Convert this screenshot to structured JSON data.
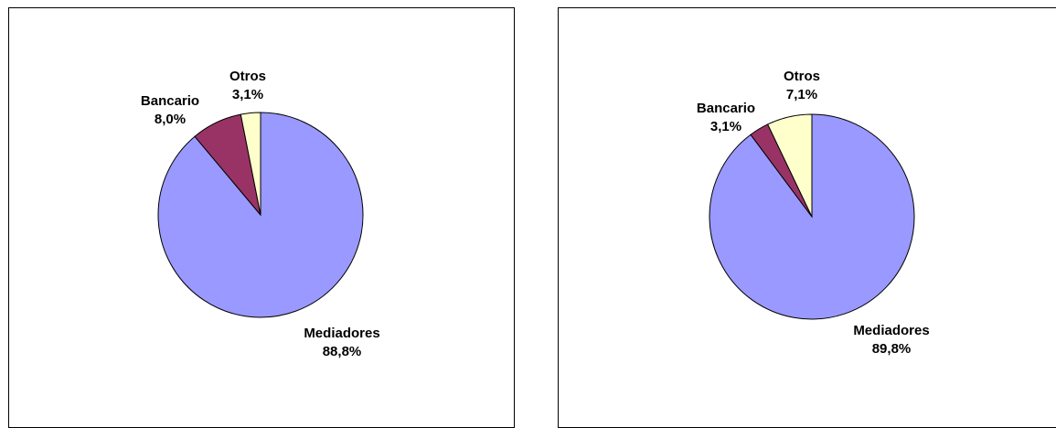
{
  "chart_data": [
    {
      "type": "pie",
      "categories": [
        "Mediadores",
        "Bancario",
        "Otros"
      ],
      "values": [
        88.8,
        8.0,
        3.1
      ],
      "value_labels": [
        "88,8%",
        "8,0%",
        "3,1%"
      ],
      "colors": [
        "#9999FF",
        "#993366",
        "#FFFFCC"
      ],
      "start_angle_deg": 0,
      "direction": "clockwise",
      "legend": "none"
    },
    {
      "type": "pie",
      "categories": [
        "Mediadores",
        "Bancario",
        "Otros"
      ],
      "values": [
        89.8,
        3.1,
        7.1
      ],
      "value_labels": [
        "89,8%",
        "3,1%",
        "7,1%"
      ],
      "colors": [
        "#9999FF",
        "#993366",
        "#FFFFCC"
      ],
      "start_angle_deg": 0,
      "direction": "clockwise",
      "legend": "none"
    }
  ]
}
